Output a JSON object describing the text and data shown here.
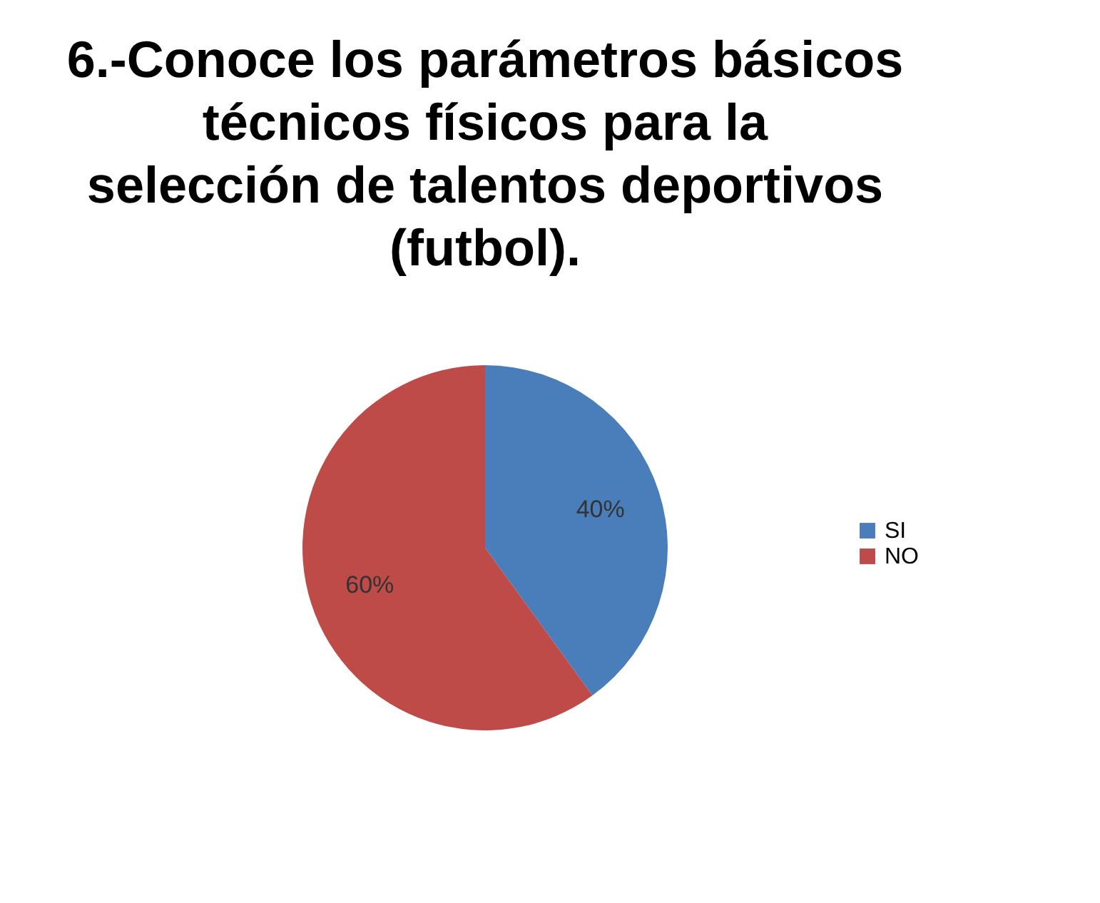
{
  "chart_data": {
    "type": "pie",
    "title": "6.-Conoce los parámetros básicos técnicos físicos para la selección de talentos deportivos (futbol).",
    "categories": [
      "SI",
      "NO"
    ],
    "values": [
      40,
      60
    ],
    "colors": [
      "#4a7ebb",
      "#be4b48"
    ],
    "value_labels": [
      "40%",
      "60%"
    ],
    "legend": "right"
  }
}
